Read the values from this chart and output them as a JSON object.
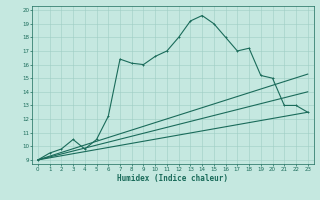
{
  "title": "",
  "xlabel": "Humidex (Indice chaleur)",
  "ylabel": "",
  "bg_color": "#c5e8e0",
  "grid_color": "#9ecec5",
  "line_color": "#1a6b5a",
  "xlim": [
    -0.5,
    23.5
  ],
  "ylim": [
    8.7,
    20.3
  ],
  "xticks": [
    0,
    1,
    2,
    3,
    4,
    5,
    6,
    7,
    8,
    9,
    10,
    11,
    12,
    13,
    14,
    15,
    16,
    17,
    18,
    19,
    20,
    21,
    22,
    23
  ],
  "yticks": [
    9,
    10,
    11,
    12,
    13,
    14,
    15,
    16,
    17,
    18,
    19,
    20
  ],
  "main_line_x": [
    0,
    1,
    2,
    3,
    4,
    5,
    6,
    7,
    8,
    9,
    10,
    11,
    12,
    13,
    14,
    15,
    16,
    17,
    18,
    19,
    20,
    21,
    22,
    23
  ],
  "main_line_y": [
    9.0,
    9.5,
    9.8,
    10.5,
    9.8,
    10.5,
    12.2,
    16.4,
    16.1,
    16.0,
    16.6,
    17.0,
    18.0,
    19.2,
    19.6,
    19.0,
    18.0,
    17.0,
    17.2,
    15.2,
    15.0,
    13.0,
    13.0,
    12.5
  ],
  "ref_line1_x": [
    0,
    23
  ],
  "ref_line1_y": [
    9.0,
    12.5
  ],
  "ref_line2_x": [
    0,
    23
  ],
  "ref_line2_y": [
    9.0,
    14.0
  ],
  "ref_line3_x": [
    0,
    23
  ],
  "ref_line3_y": [
    9.0,
    15.3
  ]
}
